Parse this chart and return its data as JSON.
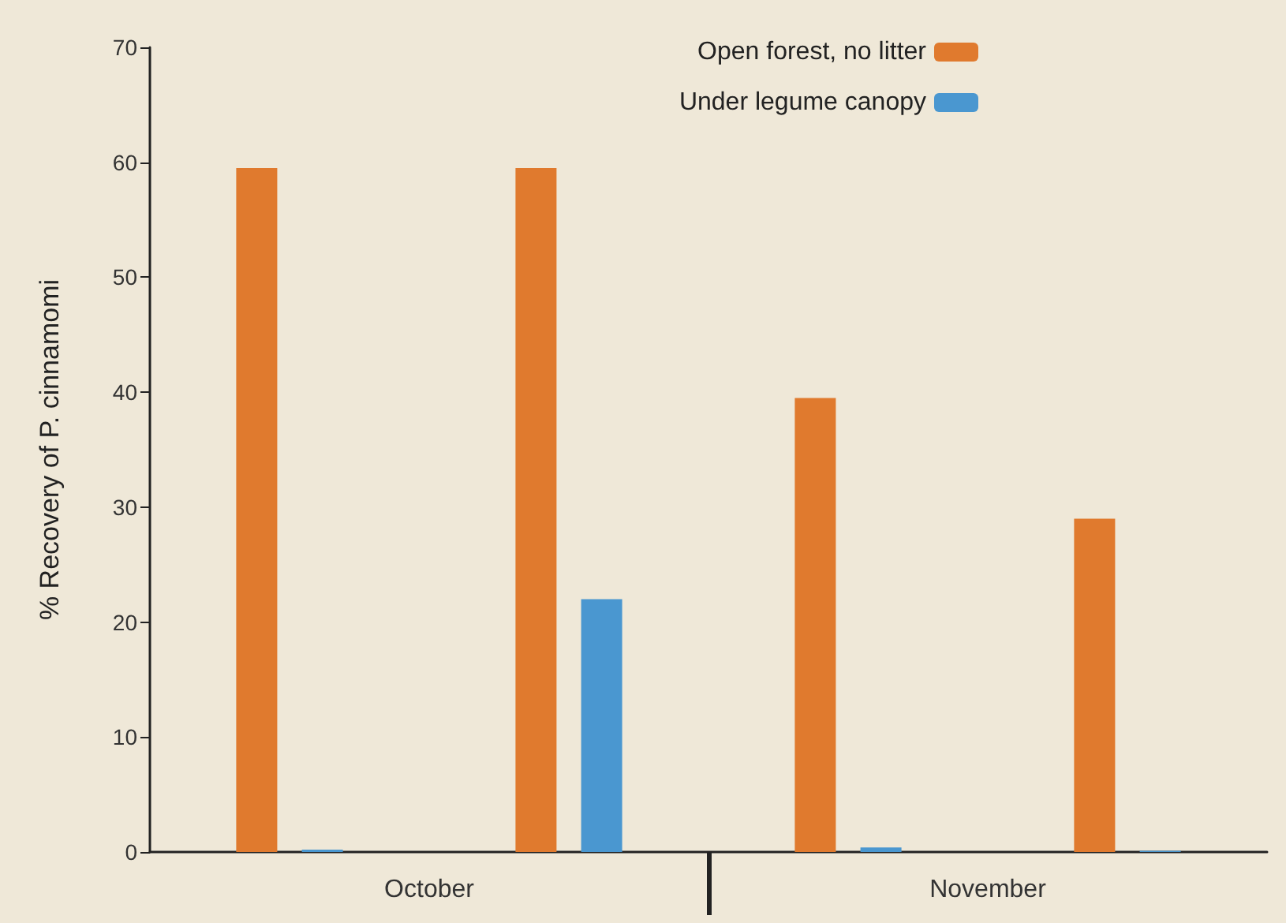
{
  "chart_data": {
    "type": "bar",
    "ylabel": "% Recovery of P. cinnamomi",
    "categories": [
      null,
      null,
      null,
      null
    ],
    "series": [
      {
        "name": "Open forest, no litter",
        "color": "#e07a2e",
        "values": [
          59.5,
          59.5,
          39.5,
          29
        ]
      },
      {
        "name": "Under legume canopy",
        "color": "#4a97d0",
        "values": [
          0.2,
          22,
          0.4,
          0.1
        ]
      }
    ],
    "ylim": [
      0,
      70
    ],
    "yticks": [
      0,
      10,
      20,
      30,
      40,
      50,
      60,
      70
    ],
    "grid": false,
    "legend": "top right",
    "annotations": [
      "October",
      "November"
    ]
  }
}
